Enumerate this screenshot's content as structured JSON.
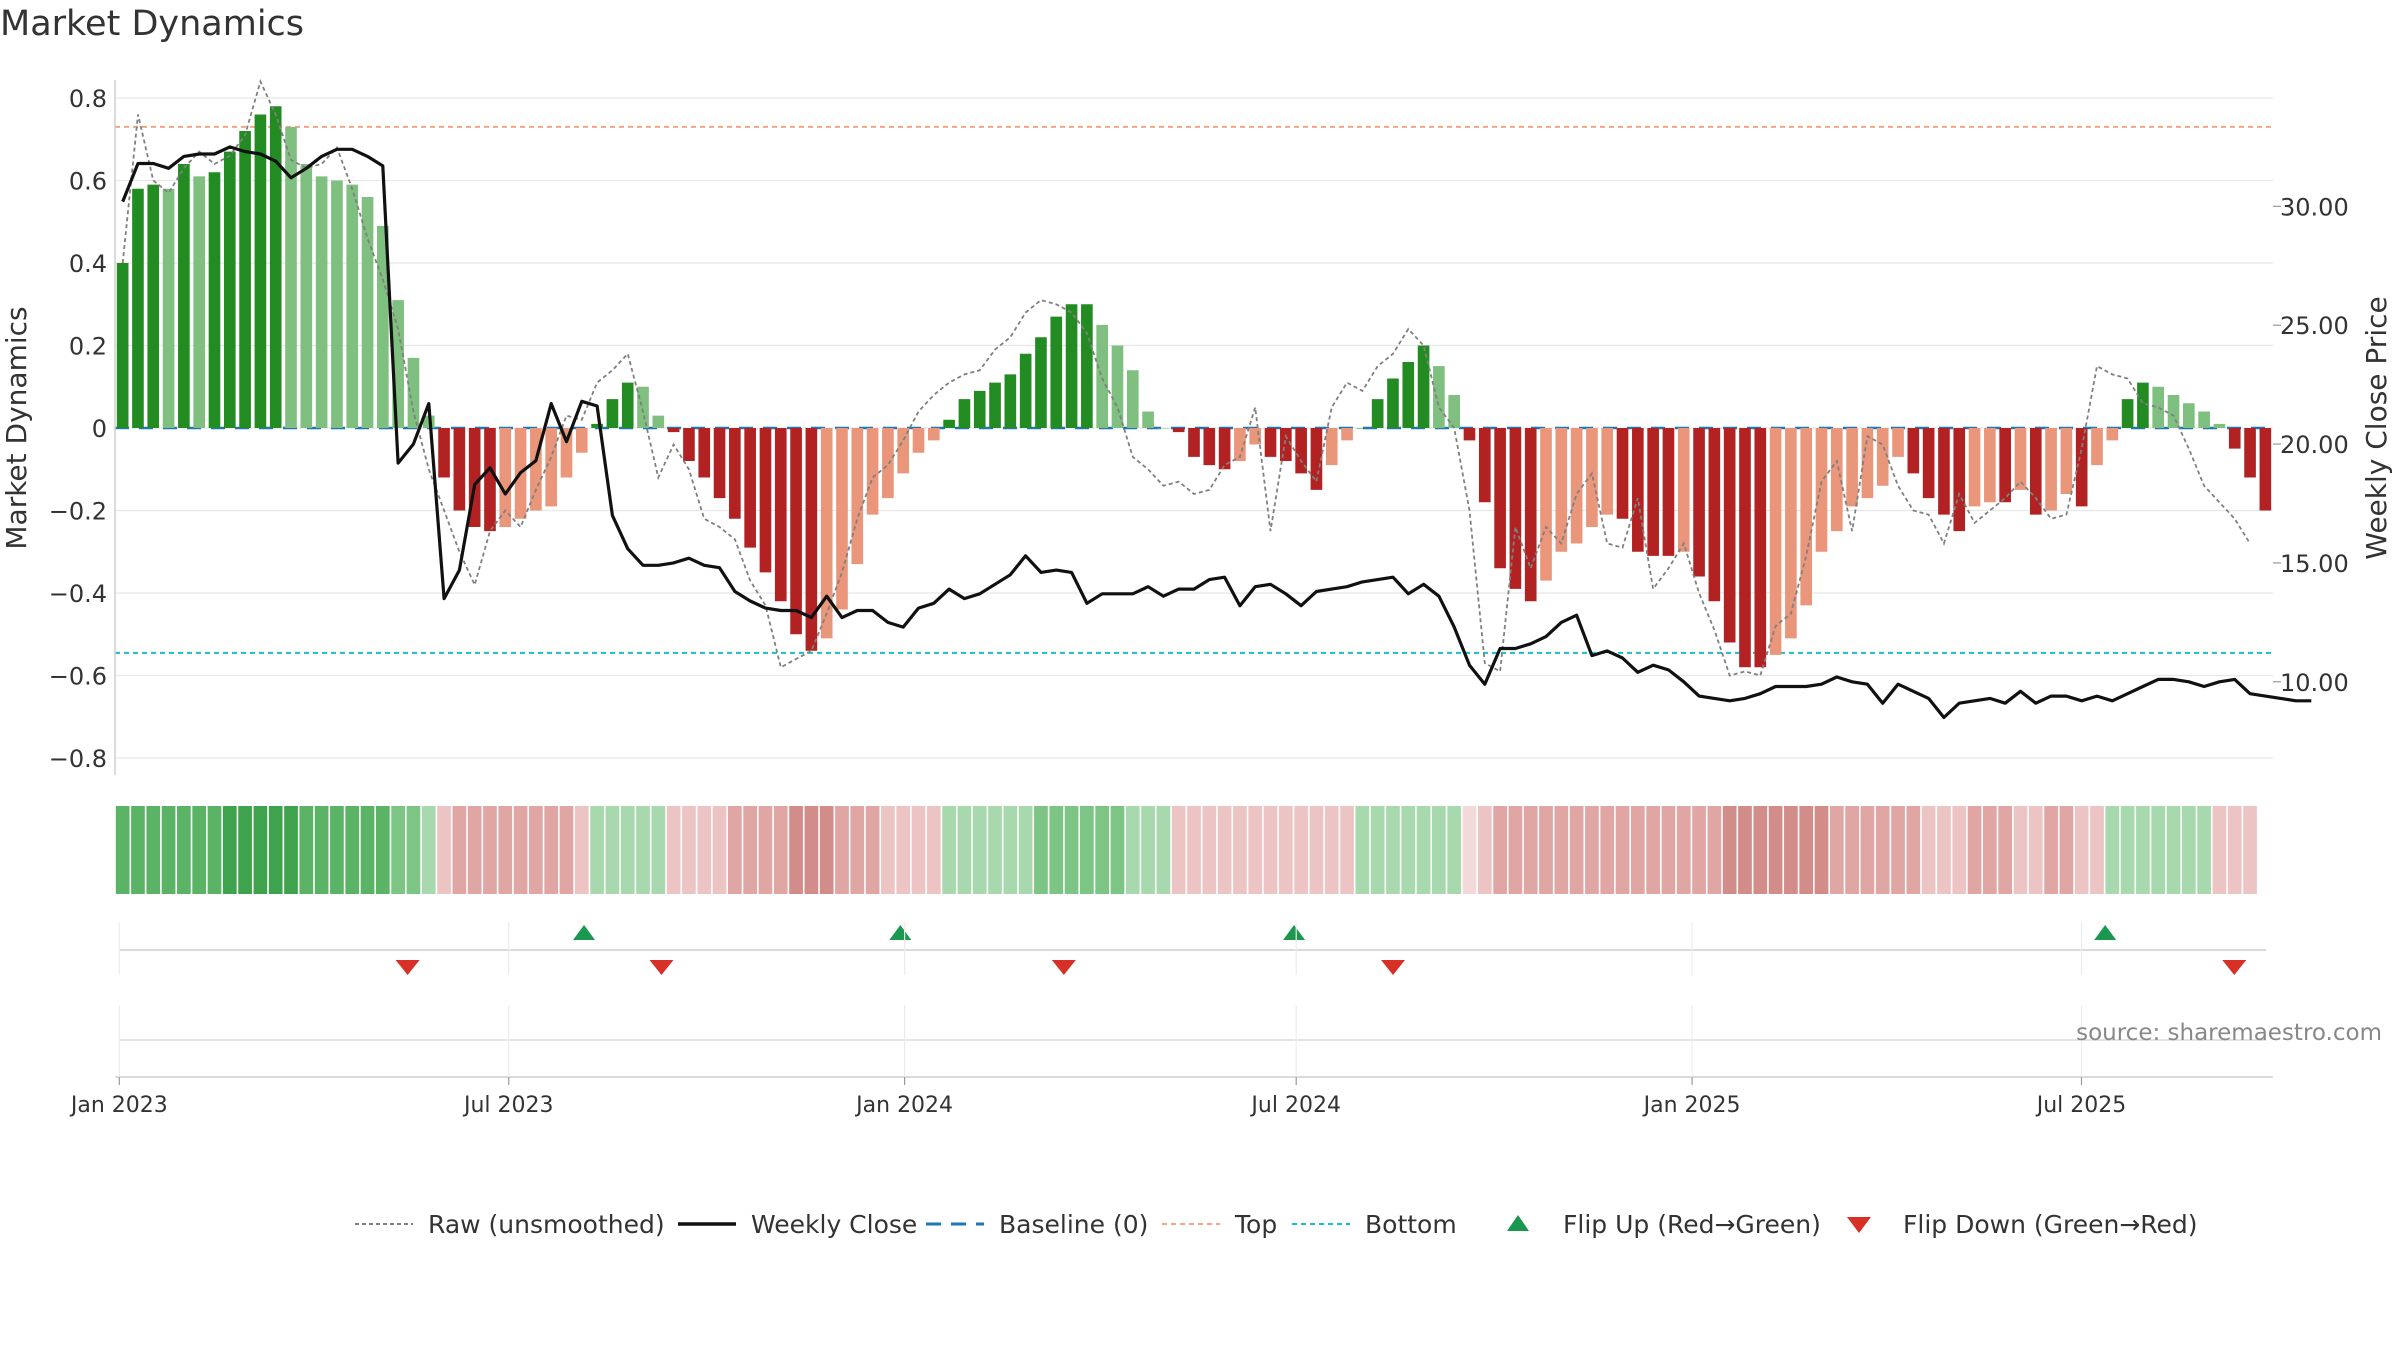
{
  "chart_data": {
    "title": "Market Dynamics",
    "type": "bar",
    "source": "source: sharemaestro.com",
    "y_left_label": "Market Dynamics",
    "y_right_label": "Weekly Close Price",
    "y_left_ticks": [
      0.8,
      0.6,
      0.4,
      0.2,
      0,
      -0.2,
      -0.4,
      -0.6,
      -0.8
    ],
    "y_left_tick_labels": [
      "0.8",
      "0.6",
      "0.4",
      "0.2",
      "0",
      "−0.2",
      "−0.4",
      "−0.6",
      "−0.8"
    ],
    "y_left_range": [
      -0.8,
      0.8
    ],
    "y_right_ticks": [
      30,
      25,
      20,
      15,
      10
    ],
    "y_right_tick_labels": [
      "30.00",
      "25.00",
      "20.00",
      "15.00",
      "10.00"
    ],
    "y_right_range": [
      6.5,
      33.0
    ],
    "x_start": "2022-12-30",
    "x_end": "2025-09-28",
    "x_tick_dates": [
      "2023-01-01",
      "2023-07-01",
      "2024-01-01",
      "2024-07-01",
      "2025-01-01",
      "2025-07-01"
    ],
    "x_tick_labels": [
      "Jan 2023",
      "Jul 2023",
      "Jan 2024",
      "Jul 2024",
      "Jan 2025",
      "Jul 2025"
    ],
    "top_level": 0.73,
    "bottom_level": -0.545,
    "series": [
      {
        "name": "Market Dynamics (bars)",
        "values": [
          0.4,
          0.58,
          0.59,
          0.58,
          0.64,
          0.61,
          0.62,
          0.67,
          0.72,
          0.76,
          0.78,
          0.73,
          0.64,
          0.61,
          0.6,
          0.59,
          0.56,
          0.49,
          0.31,
          0.17,
          0.03,
          -0.12,
          -0.2,
          -0.24,
          -0.25,
          -0.24,
          -0.22,
          -0.2,
          -0.19,
          -0.12,
          -0.06,
          0.01,
          0.07,
          0.11,
          0.1,
          0.03,
          -0.01,
          -0.08,
          -0.12,
          -0.17,
          -0.22,
          -0.29,
          -0.35,
          -0.42,
          -0.5,
          -0.54,
          -0.51,
          -0.44,
          -0.33,
          -0.21,
          -0.17,
          -0.11,
          -0.06,
          -0.03,
          0.02,
          0.07,
          0.09,
          0.11,
          0.13,
          0.18,
          0.22,
          0.27,
          0.3,
          0.3,
          0.25,
          0.2,
          0.14,
          0.04,
          0.0,
          -0.01,
          -0.07,
          -0.09,
          -0.1,
          -0.08,
          -0.04,
          -0.07,
          -0.08,
          -0.11,
          -0.15,
          -0.09,
          -0.03,
          0.0,
          0.07,
          0.12,
          0.16,
          0.2,
          0.15,
          0.08,
          -0.03,
          -0.18,
          -0.34,
          -0.39,
          -0.42,
          -0.37,
          -0.3,
          -0.28,
          -0.24,
          -0.21,
          -0.22,
          -0.3,
          -0.31,
          -0.31,
          -0.3,
          -0.36,
          -0.42,
          -0.52,
          -0.58,
          -0.58,
          -0.55,
          -0.51,
          -0.43,
          -0.3,
          -0.25,
          -0.19,
          -0.17,
          -0.14,
          -0.07,
          -0.11,
          -0.17,
          -0.21,
          -0.25,
          -0.19,
          -0.18,
          -0.18,
          -0.15,
          -0.21,
          -0.2,
          -0.16,
          -0.19,
          -0.09,
          -0.03,
          0.07,
          0.11,
          0.1,
          0.08,
          0.06,
          0.04,
          0.01,
          -0.05,
          -0.12,
          -0.2
        ]
      },
      {
        "name": "Raw (unsmoothed)",
        "values": [
          0.4,
          0.76,
          0.6,
          0.57,
          0.63,
          0.67,
          0.64,
          0.66,
          0.71,
          0.84,
          0.76,
          0.65,
          0.63,
          0.64,
          0.68,
          0.58,
          0.46,
          0.36,
          0.24,
          0.04,
          -0.1,
          -0.2,
          -0.3,
          -0.38,
          -0.25,
          -0.2,
          -0.24,
          -0.15,
          -0.07,
          0.03,
          0.02,
          0.11,
          0.14,
          0.18,
          0.04,
          -0.12,
          -0.04,
          -0.1,
          -0.22,
          -0.24,
          -0.27,
          -0.37,
          -0.43,
          -0.58,
          -0.56,
          -0.54,
          -0.45,
          -0.35,
          -0.22,
          -0.12,
          -0.09,
          -0.03,
          0.04,
          0.08,
          0.11,
          0.13,
          0.14,
          0.19,
          0.22,
          0.28,
          0.31,
          0.3,
          0.28,
          0.23,
          0.12,
          0.05,
          -0.07,
          -0.1,
          -0.14,
          -0.13,
          -0.16,
          -0.15,
          -0.09,
          -0.07,
          0.05,
          -0.25,
          -0.02,
          -0.08,
          -0.13,
          0.05,
          0.11,
          0.09,
          0.15,
          0.18,
          0.24,
          0.2,
          0.05,
          0.0,
          -0.2,
          -0.57,
          -0.59,
          -0.24,
          -0.34,
          -0.24,
          -0.28,
          -0.16,
          -0.11,
          -0.28,
          -0.29,
          -0.17,
          -0.39,
          -0.34,
          -0.28,
          -0.4,
          -0.49,
          -0.6,
          -0.59,
          -0.6,
          -0.48,
          -0.45,
          -0.31,
          -0.13,
          -0.08,
          -0.25,
          -0.02,
          -0.04,
          -0.14,
          -0.2,
          -0.21,
          -0.28,
          -0.16,
          -0.23,
          -0.2,
          -0.17,
          -0.13,
          -0.17,
          -0.22,
          -0.21,
          -0.05,
          0.15,
          0.13,
          0.12,
          0.06,
          0.05,
          0.03,
          -0.05,
          -0.14,
          -0.18,
          -0.22,
          -0.28
        ]
      },
      {
        "name": "Weekly Close",
        "axis": "right",
        "values": [
          30.2,
          31.8,
          31.8,
          31.6,
          32.1,
          32.2,
          32.2,
          32.5,
          32.3,
          32.2,
          31.9,
          31.2,
          31.6,
          32.1,
          32.4,
          32.4,
          32.1,
          31.7,
          19.2,
          20.0,
          21.7,
          13.5,
          14.7,
          18.3,
          19.0,
          17.9,
          18.8,
          19.3,
          21.7,
          20.1,
          21.8,
          21.6,
          17.0,
          15.6,
          14.9,
          14.9,
          15.0,
          15.2,
          14.9,
          14.8,
          13.8,
          13.4,
          13.1,
          13.0,
          13.0,
          12.7,
          13.6,
          12.7,
          13.0,
          13.0,
          12.5,
          12.3,
          13.1,
          13.3,
          13.9,
          13.5,
          13.7,
          14.1,
          14.5,
          15.3,
          14.6,
          14.7,
          14.6,
          13.3,
          13.7,
          13.7,
          13.7,
          14.0,
          13.6,
          13.9,
          13.9,
          14.3,
          14.4,
          13.2,
          14.0,
          14.1,
          13.7,
          13.2,
          13.8,
          13.9,
          14.0,
          14.2,
          14.3,
          14.4,
          13.7,
          14.1,
          13.6,
          12.3,
          10.7,
          9.9,
          11.4,
          11.4,
          11.6,
          11.9,
          12.5,
          12.8,
          11.1,
          11.3,
          11.0,
          10.4,
          10.7,
          10.5,
          10.0,
          9.4,
          9.3,
          9.2,
          9.3,
          9.5,
          9.8,
          9.8,
          9.8,
          9.9,
          10.2,
          10.0,
          9.9,
          9.1,
          9.9,
          9.6,
          9.3,
          8.5,
          9.1,
          9.2,
          9.3,
          9.1,
          9.6,
          9.1,
          9.4,
          9.4,
          9.2,
          9.4,
          9.2,
          9.5,
          9.8,
          10.1,
          10.1,
          10.0,
          9.8,
          10.0,
          10.1,
          9.5,
          9.4,
          9.3,
          9.2,
          9.2
        ]
      }
    ],
    "regime_strip": {
      "direction": [
        "up",
        "up",
        "up",
        "up",
        "up",
        "up",
        "up",
        "up",
        "up",
        "up",
        "up",
        "up",
        "up",
        "up",
        "up",
        "up",
        "up",
        "up",
        "up",
        "up",
        "up",
        "down",
        "down",
        "down",
        "down",
        "down",
        "down",
        "down",
        "down",
        "down",
        "down",
        "up",
        "up",
        "up",
        "up",
        "up",
        "down",
        "down",
        "down",
        "down",
        "down",
        "down",
        "down",
        "down",
        "down",
        "down",
        "down",
        "down",
        "down",
        "down",
        "down",
        "down",
        "down",
        "down",
        "up",
        "up",
        "up",
        "up",
        "up",
        "up",
        "up",
        "up",
        "up",
        "up",
        "up",
        "up",
        "up",
        "up",
        "up",
        "down",
        "down",
        "down",
        "down",
        "down",
        "down",
        "down",
        "down",
        "down",
        "down",
        "down",
        "down",
        "up",
        "up",
        "up",
        "up",
        "up",
        "up",
        "up",
        "down",
        "down",
        "down",
        "down",
        "down",
        "down",
        "down",
        "down",
        "down",
        "down",
        "down",
        "down",
        "down",
        "down",
        "down",
        "down",
        "down",
        "down",
        "down",
        "down",
        "down",
        "down",
        "down",
        "down",
        "down",
        "down",
        "down",
        "down",
        "down",
        "down",
        "down",
        "down",
        "down",
        "down",
        "down",
        "down",
        "down",
        "down",
        "down",
        "down",
        "down",
        "down",
        "up",
        "up",
        "up",
        "up",
        "up",
        "up",
        "up",
        "down",
        "down",
        "down"
      ],
      "intensity": [
        3,
        3,
        3,
        3,
        3,
        3,
        3,
        4,
        4,
        4,
        4,
        4,
        3,
        3,
        3,
        3,
        3,
        3,
        2,
        2,
        1,
        1,
        2,
        2,
        2,
        2,
        2,
        2,
        2,
        2,
        1,
        1,
        1,
        1,
        1,
        1,
        1,
        1,
        1,
        1,
        2,
        2,
        2,
        2,
        3,
        3,
        3,
        2,
        2,
        2,
        1,
        1,
        1,
        1,
        1,
        1,
        1,
        1,
        1,
        1,
        2,
        2,
        2,
        2,
        2,
        2,
        1,
        1,
        1,
        1,
        1,
        1,
        1,
        1,
        1,
        1,
        1,
        1,
        1,
        1,
        1,
        1,
        1,
        1,
        1,
        1,
        1,
        1,
        0,
        1,
        2,
        2,
        2,
        2,
        2,
        2,
        2,
        2,
        2,
        2,
        2,
        2,
        2,
        2,
        2,
        3,
        3,
        3,
        3,
        3,
        3,
        3,
        2,
        2,
        2,
        2,
        2,
        2,
        1,
        1,
        1,
        2,
        2,
        2,
        1,
        1,
        2,
        2,
        1,
        1,
        1,
        1,
        1,
        1,
        1,
        1,
        1,
        1,
        1,
        1,
        1,
        1
      ]
    },
    "flip_up_dates": [
      "2023-08-05",
      "2023-12-30",
      "2024-06-30",
      "2025-07-12"
    ],
    "flip_down_dates": [
      "2023-05-15",
      "2023-09-10",
      "2024-03-15",
      "2024-08-15",
      "2025-09-10"
    ],
    "legend": [
      {
        "label": "Raw (unsmoothed)",
        "style": "dotted-gray"
      },
      {
        "label": "Weekly Close",
        "style": "solid-black"
      },
      {
        "label": "Baseline (0)",
        "style": "dashed-blue"
      },
      {
        "label": "Top",
        "style": "dotted-orange"
      },
      {
        "label": "Bottom",
        "style": "dotted-cyan"
      },
      {
        "label": "Flip Up (Red→Green)",
        "style": "triangle-up"
      },
      {
        "label": "Flip Down (Green→Red)",
        "style": "triangle-down"
      }
    ],
    "legend_placement": "bottom",
    "grid": true,
    "colors": {
      "up_strong": "#228B22",
      "up_light": "#7fbf7f",
      "down_strong": "#b22222",
      "down_light": "#e9967a",
      "raw": "#808080",
      "close": "#111111",
      "baseline": "#1f77b4",
      "top": "#f4a582",
      "bottom": "#17becf",
      "flip_up": "#1a9850",
      "flip_down": "#d73027",
      "grid": "#e8e8e8"
    }
  }
}
